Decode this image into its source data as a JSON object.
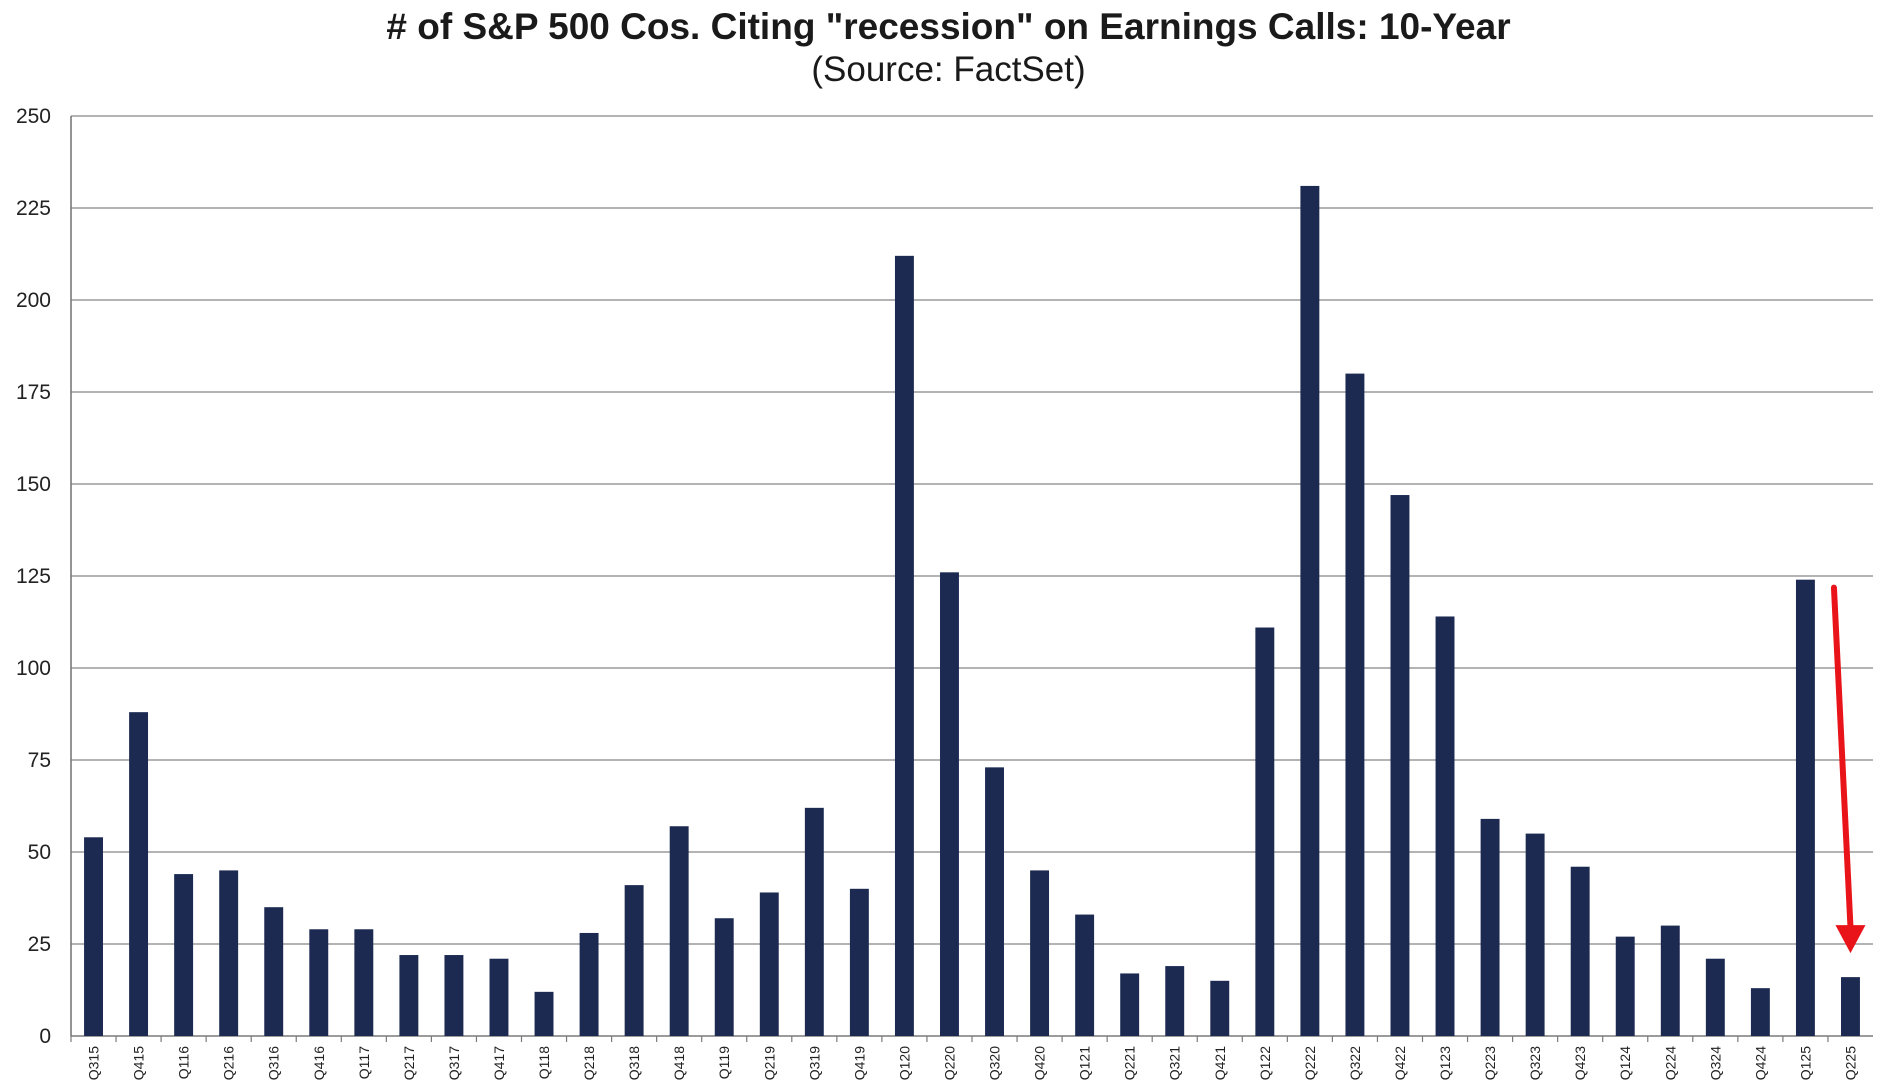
{
  "chart_data": {
    "type": "bar",
    "title": "# of S&P 500 Cos. Citing \"recession\" on Earnings Calls: 10-Year",
    "subtitle": "(Source: FactSet)",
    "categories": [
      "Q315",
      "Q415",
      "Q116",
      "Q216",
      "Q316",
      "Q416",
      "Q117",
      "Q217",
      "Q317",
      "Q417",
      "Q118",
      "Q218",
      "Q318",
      "Q418",
      "Q119",
      "Q219",
      "Q319",
      "Q419",
      "Q120",
      "Q220",
      "Q320",
      "Q420",
      "Q121",
      "Q221",
      "Q321",
      "Q421",
      "Q122",
      "Q222",
      "Q322",
      "Q422",
      "Q123",
      "Q223",
      "Q323",
      "Q423",
      "Q124",
      "Q224",
      "Q324",
      "Q424",
      "Q125",
      "Q225"
    ],
    "values": [
      54,
      88,
      44,
      45,
      35,
      29,
      29,
      22,
      22,
      21,
      12,
      28,
      41,
      57,
      32,
      39,
      62,
      40,
      212,
      126,
      73,
      45,
      33,
      17,
      19,
      15,
      111,
      231,
      180,
      147,
      114,
      59,
      55,
      46,
      27,
      30,
      21,
      13,
      124,
      16
    ],
    "ylim": [
      0,
      250
    ],
    "yticks": [
      0,
      25,
      50,
      75,
      100,
      125,
      150,
      175,
      200,
      225,
      250
    ],
    "grid": true,
    "bar_color": "#1c2a52",
    "annotation": {
      "type": "arrow",
      "from_category": "Q125",
      "to_category": "Q225",
      "color": "#e8141a"
    }
  }
}
